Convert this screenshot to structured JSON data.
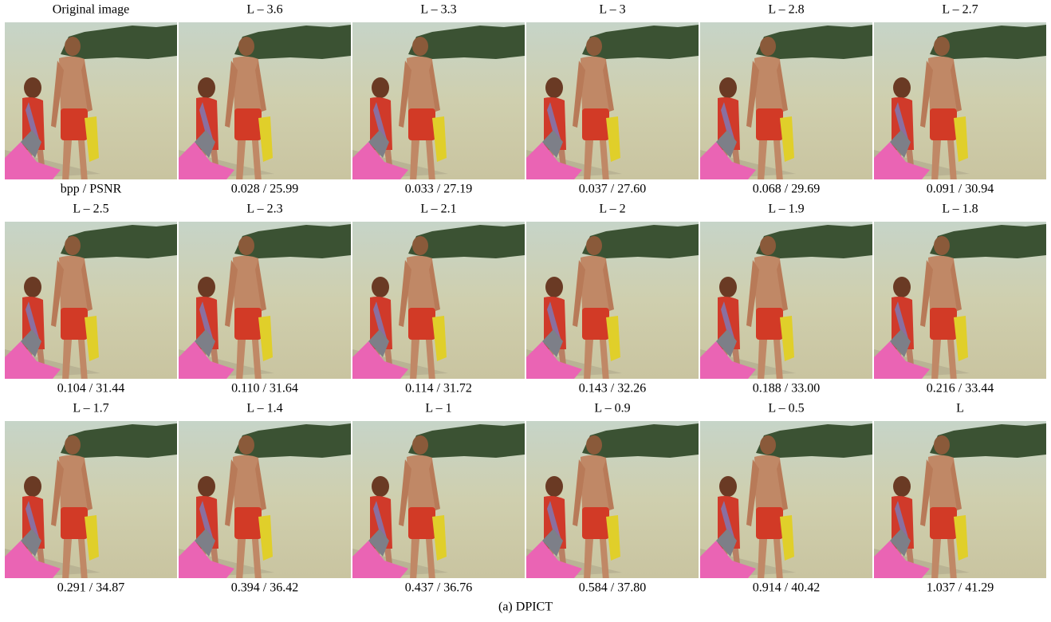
{
  "panels": [
    {
      "title": "Original image",
      "caption": "bpp / PSNR"
    },
    {
      "title": "L – 3.6",
      "caption": "0.028 / 25.99"
    },
    {
      "title": "L – 3.3",
      "caption": "0.033 / 27.19"
    },
    {
      "title": "L – 3",
      "caption": "0.037 / 27.60"
    },
    {
      "title": "L – 2.8",
      "caption": "0.068 / 29.69"
    },
    {
      "title": "L – 2.7",
      "caption": "0.091 / 30.94"
    },
    {
      "title": "L – 2.5",
      "caption": "0.104 / 31.44"
    },
    {
      "title": "L – 2.3",
      "caption": "0.110 / 31.64"
    },
    {
      "title": "L – 2.1",
      "caption": "0.114 / 31.72"
    },
    {
      "title": "L – 2",
      "caption": "0.143 / 32.26"
    },
    {
      "title": "L – 1.9",
      "caption": "0.188 / 33.00"
    },
    {
      "title": "L – 1.8",
      "caption": "0.216 / 33.44"
    },
    {
      "title": "L – 1.7",
      "caption": "0.291 / 34.87"
    },
    {
      "title": "L – 1.4",
      "caption": "0.394 / 36.42"
    },
    {
      "title": "L – 1",
      "caption": "0.437 / 36.76"
    },
    {
      "title": "L – 0.9",
      "caption": "0.584 / 37.80"
    },
    {
      "title": "L – 0.5",
      "caption": "0.914 / 40.42"
    },
    {
      "title": "L",
      "caption": "1.037 / 41.29"
    }
  ],
  "figure_caption": "(a) DPICT"
}
